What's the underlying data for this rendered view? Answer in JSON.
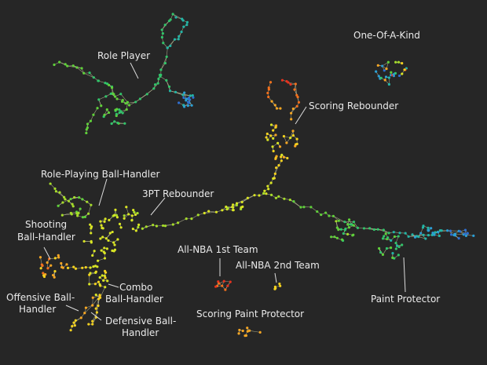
{
  "labels": {
    "role_player": "Role Player",
    "one_of_a_kind": "One-Of-A-Kind",
    "scoring_rebounder": "Scoring Rebounder",
    "role_playing_ball_handler": "Role-Playing Ball-Handler",
    "three_pt_rebounder": "3PT Rebounder",
    "shooting_ball_handler_1": "Shooting",
    "shooting_ball_handler_2": "Ball-Handler",
    "combo_ball_handler_1": "Combo",
    "combo_ball_handler_2": "Ball-Handler",
    "offensive_ball_handler_1": "Offensive Ball-",
    "offensive_ball_handler_2": "Handler",
    "defensive_ball_handler_1": "Defensive Ball-",
    "defensive_ball_handler_2": "Handler",
    "all_nba_1st": "All-NBA 1st Team",
    "all_nba_2nd": "All-NBA 2nd Team",
    "scoring_paint_protector": "Scoring Paint Protector",
    "paint_protector": "Paint Protector"
  },
  "colors": {
    "background": "#262626",
    "label_text": "#eaeaea",
    "leader_line": "#dcdcdc",
    "edge": "#c8c8a0",
    "palette": [
      "#e8321e",
      "#f2701c",
      "#f6a623",
      "#f4d21f",
      "#d9e524",
      "#a6dd2a",
      "#5fd13a",
      "#31c46a",
      "#23b5a6",
      "#2a9fd6",
      "#2f6fd0",
      "#3b3fc4"
    ]
  }
}
